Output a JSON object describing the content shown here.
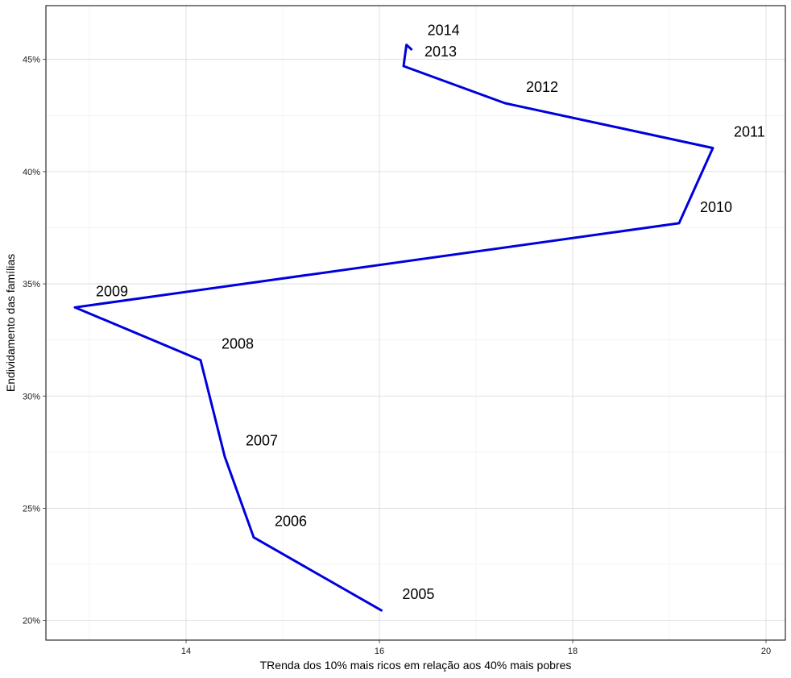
{
  "chart_data": {
    "type": "line",
    "title": "",
    "xlabel": "TRenda dos 10% mais ricos em relação aos 40% mais pobres",
    "ylabel": "Endividamento das famílias",
    "xlim": [
      12.55,
      20.2
    ],
    "ylim": [
      0.19125,
      0.47395
    ],
    "x_ticks": [
      14,
      16,
      18,
      20
    ],
    "x_tick_labels": [
      "14",
      "16",
      "18",
      "20"
    ],
    "y_ticks": [
      0.2,
      0.25,
      0.3,
      0.35,
      0.4,
      0.45
    ],
    "y_tick_labels": [
      "20%",
      "25%",
      "30%",
      "35%",
      "40%",
      "45%"
    ],
    "x_minor_ticks": [
      13,
      15,
      17,
      19
    ],
    "grid": true,
    "legend": "none",
    "line_color": "#0000dd",
    "series": [
      {
        "points": [
          {
            "label": "2005",
            "x": 16.02,
            "y": 0.2045
          },
          {
            "label": "2006",
            "x": 14.7,
            "y": 0.237
          },
          {
            "label": "2007",
            "x": 14.4,
            "y": 0.273
          },
          {
            "label": "2008",
            "x": 14.15,
            "y": 0.316
          },
          {
            "label": "2009",
            "x": 12.85,
            "y": 0.3395
          },
          {
            "label": "2010",
            "x": 19.1,
            "y": 0.377
          },
          {
            "label": "2011",
            "x": 19.45,
            "y": 0.4105
          },
          {
            "label": "2012",
            "x": 17.3,
            "y": 0.4305
          },
          {
            "label": "2013",
            "x": 16.25,
            "y": 0.447
          },
          {
            "label": "2014",
            "x": 16.28,
            "y": 0.4565
          }
        ],
        "tail": {
          "x": 16.33,
          "y": 0.4545
        }
      }
    ]
  }
}
